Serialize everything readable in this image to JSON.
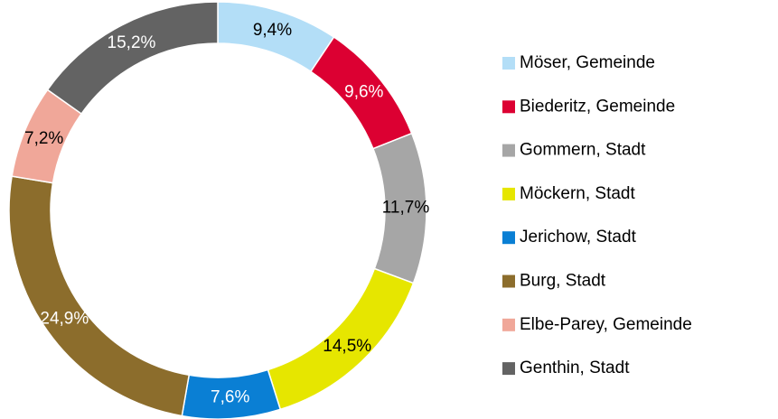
{
  "chart_data": {
    "type": "donut",
    "categories": [
      "Möser, Gemeinde",
      "Biederitz, Gemeinde",
      "Gommern, Stadt",
      "Möckern, Stadt",
      "Jerichow, Stadt",
      "Burg, Stadt",
      "Elbe-Parey, Gemeinde",
      "Genthin, Stadt"
    ],
    "values": [
      9.4,
      9.6,
      11.7,
      14.5,
      7.6,
      24.9,
      7.2,
      15.2
    ],
    "value_labels": [
      "9,4%",
      "9,6%",
      "11,7%",
      "14,5%",
      "7,6%",
      "24,9%",
      "7,2%",
      "15,2%"
    ],
    "colors": [
      "#b3def7",
      "#dc0032",
      "#a6a6a6",
      "#e6e600",
      "#0a7fd4",
      "#8c6d2c",
      "#f0a799",
      "#636363"
    ],
    "label_colors": [
      "#000000",
      "#ffffff",
      "#000000",
      "#000000",
      "#ffffff",
      "#ffffff",
      "#000000",
      "#ffffff"
    ],
    "legend": "right"
  }
}
